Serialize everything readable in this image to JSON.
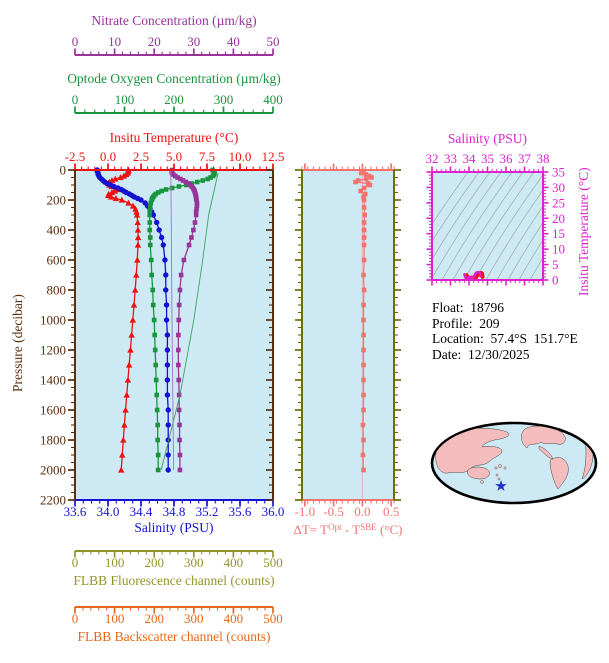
{
  "colors": {
    "panel_bg": "#cde9f3",
    "pressure": "#5a2e0e",
    "nitrate": "#993399",
    "oxygen": "#17953d",
    "temperature": "#ee1111",
    "salinity": "#1212d0",
    "delta": "#f4736e",
    "delta_spine": "#6b7000",
    "ts": "#dd22cc",
    "fluorescence": "#94942c",
    "backscatter": "#e66818",
    "oxygen_reference_line": "#3aa55c",
    "nitrate_reference_line": "#a86fc8",
    "contour": "#a3aeb8",
    "map_land": "#f4bcbc",
    "map_ocean": "#cde9f3",
    "map_outline": "#000000",
    "star": "#2236cc",
    "info_text": "#000000"
  },
  "info": {
    "float_label": "Float:",
    "float_value": "18796",
    "profile_label": "Profile:",
    "profile_value": "209",
    "location_label": "Location:",
    "location_value": "57.4°S  151.7°E",
    "date_label": "Date:",
    "date_value": "12/30/2025"
  },
  "map": {
    "marker": "float-position-star"
  },
  "chart_data": [
    {
      "id": "profile_plot",
      "type": "line",
      "y_axis": {
        "label": "Pressure (decibar)",
        "min": 0,
        "max": 2200,
        "ticks": [
          "0",
          "200",
          "400",
          "600",
          "800",
          "1000",
          "1200",
          "1400",
          "1600",
          "1800",
          "2000",
          "2200"
        ],
        "minor_step": 50
      },
      "x_axes": [
        {
          "id": "nitrate",
          "label": "Nitrate Concentration (µm/kg)",
          "min": 0,
          "max": 50,
          "ticks": [
            "0",
            "10",
            "20",
            "30",
            "40",
            "50"
          ],
          "minor_step": 2
        },
        {
          "id": "oxygen",
          "label": "Optode Oxygen Concentration (µm/kg)",
          "min": 0,
          "max": 400,
          "ticks": [
            "0",
            "100",
            "200",
            "300",
            "400"
          ],
          "minor_step": 20
        },
        {
          "id": "temperature",
          "label": "Insitu Temperature (°C)",
          "min": -2.5,
          "max": 12.5,
          "ticks": [
            "-2.5",
            "0.0",
            "2.5",
            "5.0",
            "7.5",
            "10.0",
            "12.5"
          ],
          "minor_step": 0.5
        },
        {
          "id": "salinity",
          "label": "Salinity (PSU)",
          "min": 33.6,
          "max": 36.0,
          "ticks": [
            "33.6",
            "34.0",
            "34.4",
            "34.8",
            "35.2",
            "35.6",
            "36.0"
          ],
          "minor_step": 0.1
        },
        {
          "id": "fluorescence",
          "label": "FLBB Fluorescence channel (counts)",
          "min": 0,
          "max": 500,
          "ticks": [
            "0",
            "100",
            "200",
            "300",
            "400",
            "500"
          ],
          "minor_step": 20
        },
        {
          "id": "backscatter",
          "label": "FLBB Backscatter channel (counts)",
          "min": 0,
          "max": 500,
          "ticks": [
            "0",
            "100",
            "200",
            "300",
            "400",
            "500"
          ],
          "minor_step": 20
        }
      ],
      "pressure": [
        0,
        10,
        20,
        30,
        40,
        50,
        60,
        70,
        80,
        90,
        100,
        110,
        120,
        130,
        140,
        150,
        160,
        170,
        180,
        190,
        200,
        220,
        240,
        260,
        280,
        300,
        350,
        400,
        450,
        500,
        600,
        700,
        800,
        900,
        1000,
        1100,
        1200,
        1300,
        1400,
        1500,
        1600,
        1700,
        1800,
        1900,
        2000
      ],
      "series": [
        {
          "name": "temperature",
          "axis": "temperature",
          "marker": "triangle",
          "values": [
            1.55,
            1.52,
            1.5,
            1.38,
            1.2,
            0.95,
            0.55,
            0.3,
            0.1,
            0.02,
            0.1,
            0.28,
            0.6,
            0.78,
            0.52,
            0.3,
            0.05,
            0.02,
            0.25,
            0.6,
            1.05,
            1.55,
            1.9,
            2.08,
            2.16,
            2.2,
            2.25,
            2.27,
            2.28,
            2.27,
            2.22,
            2.14,
            2.06,
            1.97,
            1.88,
            1.79,
            1.7,
            1.6,
            1.51,
            1.42,
            1.33,
            1.24,
            1.16,
            1.08,
            1.0
          ]
        },
        {
          "name": "salinity",
          "axis": "salinity",
          "marker": "circle",
          "values": [
            33.87,
            33.87,
            33.88,
            33.88,
            33.89,
            33.9,
            33.92,
            33.94,
            33.96,
            33.99,
            34.03,
            34.07,
            34.12,
            34.16,
            34.19,
            34.22,
            34.26,
            34.29,
            34.32,
            34.36,
            34.4,
            34.45,
            34.48,
            34.51,
            34.53,
            34.55,
            34.59,
            34.62,
            34.65,
            34.67,
            34.69,
            34.7,
            34.7,
            34.71,
            34.71,
            34.72,
            34.72,
            34.72,
            34.72,
            34.72,
            34.73,
            34.73,
            34.73,
            34.73,
            34.73
          ]
        },
        {
          "name": "oxygen",
          "axis": "oxygen",
          "marker": "square",
          "values": [
            278,
            280,
            282,
            281,
            279,
            274,
            268,
            258,
            247,
            236,
            225,
            210,
            196,
            184,
            175,
            168,
            163,
            160,
            158,
            156,
            155,
            153,
            152,
            152,
            151,
            151,
            151,
            151,
            152,
            152,
            154,
            155,
            157,
            158,
            160,
            161,
            162,
            163,
            164,
            165,
            166,
            167,
            167,
            168,
            168
          ]
        },
        {
          "name": "nitrate",
          "axis": "nitrate",
          "marker": "square",
          "values": [
            24.5,
            24.4,
            24.5,
            24.8,
            25.3,
            25.9,
            26.6,
            27.3,
            28.0,
            28.6,
            29.1,
            29.5,
            29.8,
            30.0,
            30.2,
            30.3,
            30.4,
            30.5,
            30.6,
            30.6,
            30.7,
            30.8,
            30.8,
            30.7,
            30.6,
            30.6,
            30.3,
            29.9,
            29.4,
            28.8,
            27.5,
            26.8,
            26.5,
            26.3,
            26.2,
            26.1,
            26.1,
            26.1,
            26.2,
            26.3,
            26.3,
            26.4,
            26.4,
            26.5,
            26.5
          ]
        },
        {
          "name": "oxygen_reference_line",
          "axis": "oxygen",
          "marker": "none",
          "pressure": [
            20,
            300,
            600,
            1000,
            1500,
            2000
          ],
          "values": [
            289,
            270,
            258,
            240,
            212,
            174
          ]
        },
        {
          "name": "nitrate_reference_line",
          "axis": "nitrate",
          "marker": "none",
          "pressure": [
            0,
            1000,
            2000
          ],
          "values": [
            24.2,
            24.5,
            24.9
          ]
        }
      ]
    },
    {
      "id": "delta_t_plot",
      "type": "line",
      "x_axis": {
        "label_parts": {
          "prefix": "ΔT= T",
          "sup1": "Opt",
          "mid": " - T",
          "sup2": "SBE",
          "suffix": " (°C)"
        },
        "min": -1.05,
        "max": 0.55,
        "ticks": [
          "-1.0",
          "-0.5",
          "0.0",
          "0.5"
        ],
        "minor_step": 0.1,
        "zero_line": 0.0
      },
      "series": [
        {
          "name": "delta_t",
          "marker": "square",
          "pressure": [
            10,
            20,
            30,
            40,
            50,
            60,
            70,
            80,
            90,
            100,
            120,
            140,
            160,
            180,
            200,
            250,
            300,
            350,
            400,
            450,
            500,
            600,
            700,
            800,
            900,
            1000,
            1100,
            1200,
            1300,
            1400,
            1500,
            1600,
            1700,
            1800,
            1900,
            2000
          ],
          "values": [
            0.02,
            -0.02,
            0.06,
            0.12,
            0.16,
            0.07,
            -0.07,
            -0.12,
            0.1,
            0.13,
            0.03,
            -0.03,
            0.05,
            0.02,
            0.03,
            0.03,
            0.04,
            0.03,
            0.03,
            0.03,
            0.03,
            0.03,
            0.02,
            0.03,
            0.02,
            0.02,
            0.02,
            0.02,
            0.02,
            0.02,
            0.02,
            0.02,
            0.01,
            0.02,
            0.01,
            0.02
          ]
        }
      ]
    },
    {
      "id": "ts_diagram",
      "type": "scatter",
      "x_axis": {
        "label": "Salinity (PSU)",
        "min": 32,
        "max": 38,
        "ticks": [
          "32",
          "33",
          "34",
          "35",
          "36",
          "37",
          "38"
        ],
        "minor_step": 0.25
      },
      "y_axis": {
        "label": "Insitu Temperature (°C)",
        "min": 0,
        "max": 35,
        "ticks": [
          "0",
          "5",
          "10",
          "15",
          "20",
          "25",
          "30",
          "35"
        ],
        "minor_step": 1
      },
      "isopycnal_contours": {
        "count": 17,
        "style": "thin-gray-diagonal"
      },
      "series": [
        {
          "name": "ts_insitu",
          "salinity": [
            33.87,
            33.88,
            33.9,
            33.94,
            33.99,
            34.03,
            34.12,
            34.16,
            34.22,
            34.26,
            34.32,
            34.4,
            34.48,
            34.51,
            34.55,
            34.62,
            34.67,
            34.7,
            34.71,
            34.72,
            34.72,
            34.73,
            34.73
          ],
          "temperature": [
            1.55,
            1.4,
            0.95,
            0.3,
            0.02,
            0.1,
            0.6,
            0.78,
            0.3,
            0.05,
            0.25,
            1.05,
            1.9,
            2.08,
            2.2,
            2.27,
            2.27,
            2.14,
            1.88,
            1.7,
            1.51,
            1.33,
            1.0
          ]
        },
        {
          "name": "ts_adjusted",
          "salinity": [
            33.75,
            33.76,
            33.78,
            33.82,
            33.87,
            33.91,
            34.0,
            34.04,
            34.1,
            34.14,
            34.2,
            34.28,
            34.36,
            34.39,
            34.43,
            34.5,
            34.55,
            34.58,
            34.59,
            34.6,
            34.6,
            34.61,
            34.61
          ],
          "temperature": [
            1.85,
            1.7,
            1.25,
            0.6,
            0.32,
            0.4,
            0.9,
            1.08,
            0.6,
            0.35,
            0.55,
            1.35,
            2.2,
            2.38,
            2.5,
            2.57,
            2.57,
            2.44,
            2.18,
            2.0,
            1.81,
            1.63,
            1.3
          ]
        }
      ]
    }
  ]
}
